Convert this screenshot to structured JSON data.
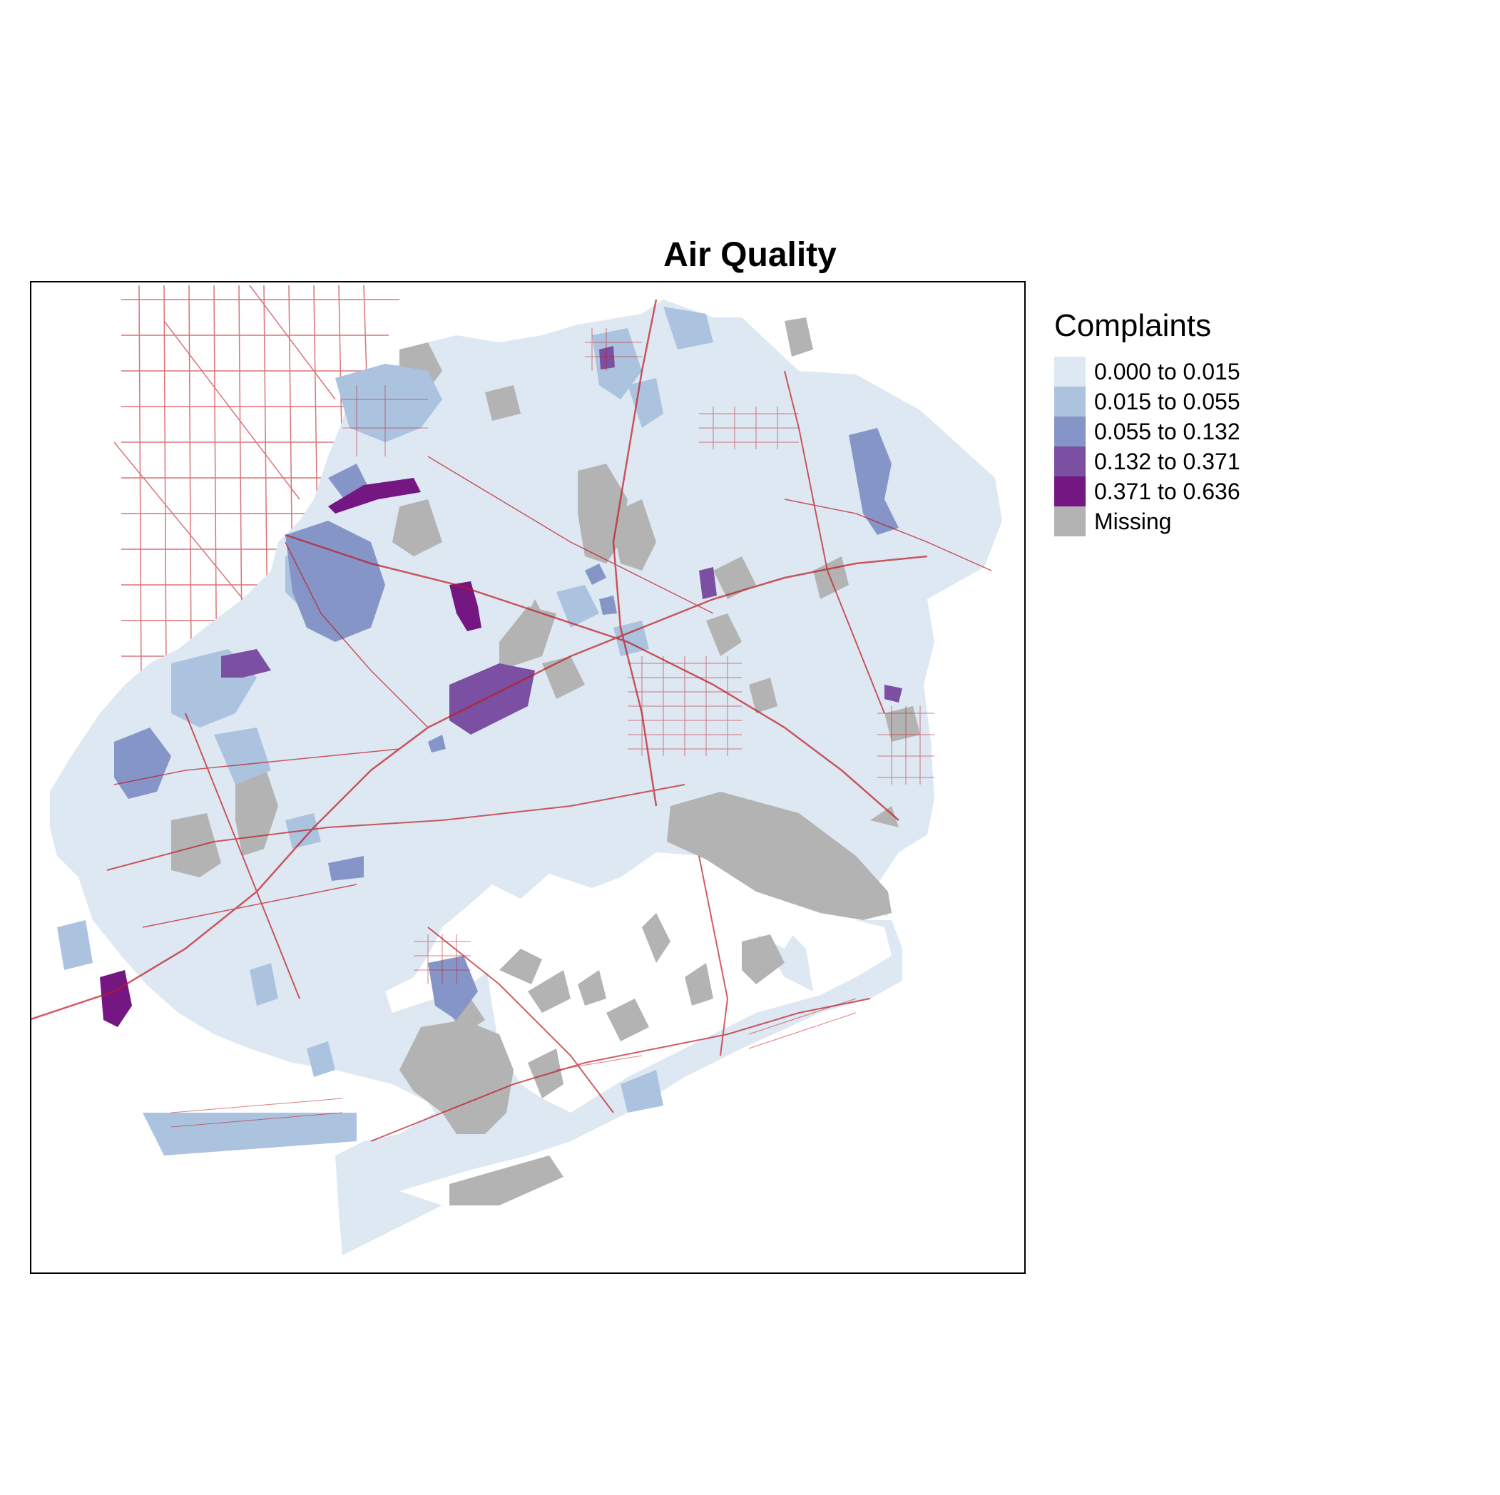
{
  "map": {
    "title": "Air Quality",
    "legend": {
      "title": "Complaints",
      "items": [
        {
          "label": "0.000 to 0.015",
          "color": "#dde8f2"
        },
        {
          "label": "0.015 to 0.055",
          "color": "#abc3df"
        },
        {
          "label": "0.055 to 0.132",
          "color": "#8595c8"
        },
        {
          "label": "0.132 to 0.371",
          "color": "#7b4fa1"
        },
        {
          "label": "0.371 to 0.636",
          "color": "#741783"
        },
        {
          "label": "Missing",
          "color": "#b3b3b3"
        }
      ]
    },
    "colors": {
      "road": "#c0181f",
      "frame": "#000000"
    }
  }
}
